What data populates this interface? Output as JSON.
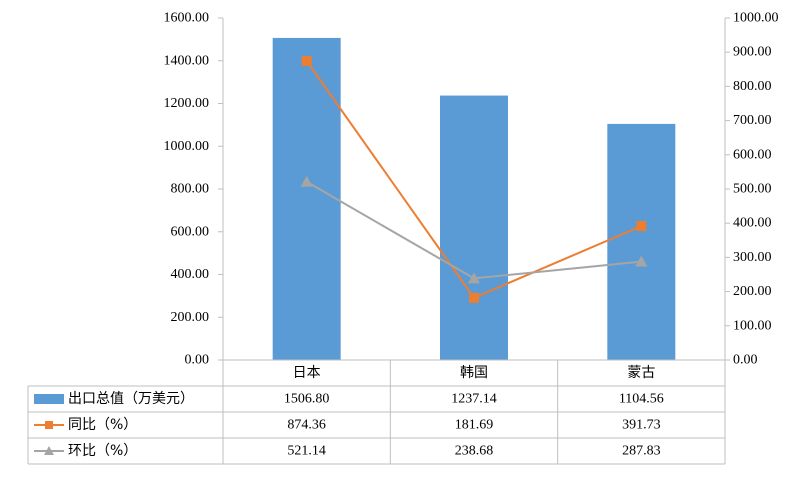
{
  "chart_data": {
    "type": "bar",
    "categories": [
      "日本",
      "韩国",
      "蒙古"
    ],
    "series": [
      {
        "name": "出口总值（万美元）",
        "kind": "bar",
        "axis": "left",
        "color": "#5B9BD5",
        "values": [
          1506.8,
          1237.14,
          1104.56
        ],
        "labels": [
          "1506.80",
          "1237.14",
          "1104.56"
        ]
      },
      {
        "name": "同比（%）",
        "kind": "line",
        "marker": "square",
        "axis": "right",
        "color": "#ED7D31",
        "values": [
          874.36,
          181.69,
          391.73
        ],
        "labels": [
          "874.36",
          "181.69",
          "391.73"
        ]
      },
      {
        "name": "环比（%）",
        "kind": "line",
        "marker": "triangle",
        "axis": "right",
        "color": "#A5A5A5",
        "values": [
          521.14,
          238.68,
          287.83
        ],
        "labels": [
          "521.14",
          "238.68",
          "287.83"
        ]
      }
    ],
    "ylim": [
      0,
      1600
    ],
    "y2lim": [
      0,
      1000
    ],
    "yticks": [
      "0.00",
      "200.00",
      "400.00",
      "600.00",
      "800.00",
      "1000.00",
      "1200.00",
      "1400.00",
      "1600.00"
    ],
    "y2ticks": [
      "0.00",
      "100.00",
      "200.00",
      "300.00",
      "400.00",
      "500.00",
      "600.00",
      "700.00",
      "800.00",
      "900.00",
      "1000.00"
    ],
    "legend": "data-table",
    "grid": false
  }
}
